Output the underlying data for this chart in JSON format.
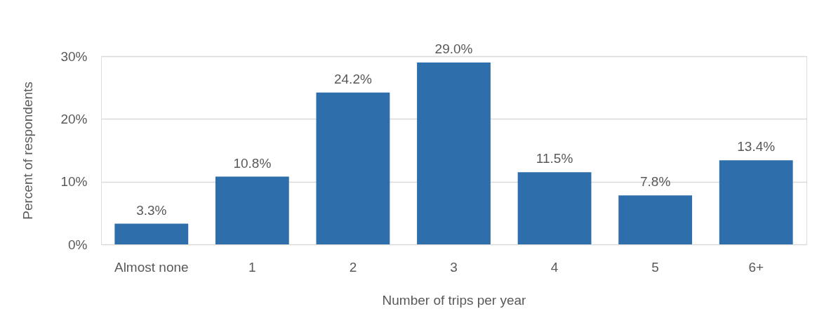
{
  "chart_data": {
    "type": "bar",
    "xlabel": "Number of trips per year",
    "ylabel": "Percent of respondents",
    "categories": [
      "Almost none",
      "1",
      "2",
      "3",
      "4",
      "5",
      "6+"
    ],
    "values": [
      3.3,
      10.8,
      24.2,
      29.0,
      11.5,
      7.8,
      13.4
    ],
    "value_labels": [
      "3.3%",
      "10.8%",
      "24.2%",
      "29.0%",
      "11.5%",
      "7.8%",
      "13.4%"
    ],
    "color": "#2e6eab",
    "ylim": [
      0,
      30
    ],
    "yticks": [
      {
        "value": 0,
        "label": "0%"
      },
      {
        "value": 10,
        "label": "10%"
      },
      {
        "value": 20,
        "label": "20%"
      },
      {
        "value": 30,
        "label": "30%"
      }
    ],
    "grid": "y"
  }
}
